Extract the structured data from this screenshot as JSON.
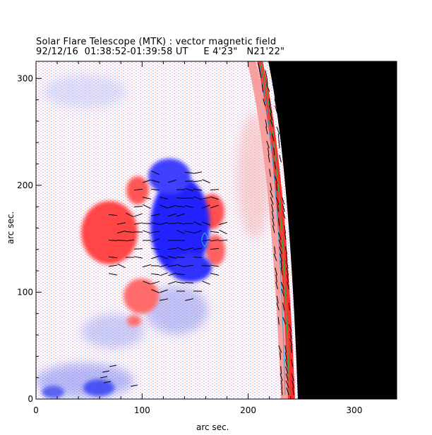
{
  "title": "Solar Flare Telescope (MTK) : vector magnetic field",
  "subtitle": "92/12/16  01:38:52-01:39:58 UT     E 4'23\"   N21'22\"",
  "xlabel": "arc sec.",
  "ylabel": "arc sec.",
  "x_ticks": [
    "0",
    "100",
    "200",
    "300"
  ],
  "y_ticks": [
    "0",
    "100",
    "200",
    "300"
  ],
  "colors": {
    "positive": "#ff3030",
    "negative": "#2020ff",
    "background_noise_pos": "#f4a0a0",
    "background_noise_neg": "#9fa6ef",
    "limb": "#000000",
    "contour_green": "#22bb44",
    "contour_cyan": "#22aadd"
  },
  "chart_data": {
    "type": "heatmap",
    "xlim": [
      0,
      340
    ],
    "ylim": [
      0,
      316
    ],
    "limb_x_at_y": [
      [
        316,
        213
      ],
      [
        250,
        219
      ],
      [
        200,
        224
      ],
      [
        150,
        228
      ],
      [
        100,
        232
      ],
      [
        50,
        235
      ],
      [
        0,
        238
      ]
    ]
  }
}
